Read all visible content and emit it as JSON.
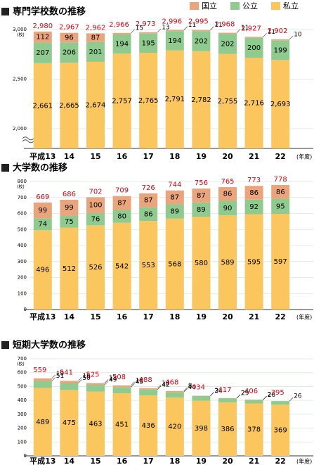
{
  "chart_data": [
    {
      "type": "bar",
      "stacked": true,
      "title": "専門学校数の推移",
      "y_unit": "(校)",
      "x_unit": "(年度)",
      "legend": "top-right",
      "categories": [
        "平成13",
        "14",
        "15",
        "16",
        "17",
        "18",
        "19",
        "20",
        "21",
        "22"
      ],
      "series": [
        {
          "name": "国立",
          "color": "#eaa57d",
          "values": [
            112,
            96,
            87,
            15,
            13,
            11,
            11,
            11,
            11,
            10
          ]
        },
        {
          "name": "公立",
          "color": "#8fcb8f",
          "values": [
            207,
            206,
            201,
            194,
            195,
            194,
            202,
            202,
            200,
            199
          ]
        },
        {
          "name": "私立",
          "color": "#fbc65e",
          "values": [
            2661,
            2665,
            2674,
            2757,
            2765,
            2791,
            2782,
            2755,
            2716,
            2693
          ]
        }
      ],
      "totals": [
        {
          "value": 2980,
          "label": "2,980"
        },
        {
          "value": 2967,
          "label": "2,967"
        },
        {
          "value": 2962,
          "label": "2,962"
        },
        {
          "value": 2966,
          "label": "2,966"
        },
        {
          "value": 2973,
          "label": "2,973"
        },
        {
          "value": 2996,
          "label": "2,996"
        },
        {
          "value": 2995,
          "label": "2,995"
        },
        {
          "value": 2968,
          "label": "2,968"
        },
        {
          "value": 2927,
          "label": "2,927"
        },
        {
          "value": 2902,
          "label": "2,902"
        }
      ],
      "value_labels": [
        [
          112,
          96,
          87,
          15,
          13,
          11,
          11,
          11,
          11,
          10
        ],
        [
          207,
          206,
          201,
          194,
          195,
          194,
          202,
          202,
          200,
          199
        ],
        [
          "2,661",
          "2,665",
          "2,674",
          "2,757",
          "2,765",
          "2,791",
          "2,782",
          "2,755",
          "2,716",
          "2,693"
        ]
      ],
      "totals_color": "#e60012",
      "ylim": [
        1800,
        3050
      ],
      "yticks": [
        {
          "value": 2000,
          "label": "2,000"
        },
        {
          "value": 2500,
          "label": "2,500"
        },
        {
          "value": 3000,
          "label": "3,000"
        }
      ],
      "axis_break": true,
      "grid": true
    },
    {
      "type": "bar",
      "stacked": true,
      "title": "大学数の推移",
      "y_unit": "(校)",
      "x_unit": "(年度)",
      "categories": [
        "平成13",
        "14",
        "15",
        "16",
        "17",
        "18",
        "19",
        "20",
        "21",
        "22"
      ],
      "series": [
        {
          "name": "国立",
          "color": "#eaa57d",
          "values": [
            99,
            99,
            100,
            87,
            87,
            87,
            87,
            86,
            86,
            86
          ]
        },
        {
          "name": "公立",
          "color": "#8fcb8f",
          "values": [
            74,
            75,
            76,
            80,
            86,
            89,
            89,
            90,
            92,
            95
          ]
        },
        {
          "name": "私立",
          "color": "#fbc65e",
          "values": [
            496,
            512,
            526,
            542,
            553,
            568,
            580,
            589,
            595,
            597
          ]
        }
      ],
      "totals": [
        669,
        686,
        702,
        709,
        726,
        744,
        756,
        765,
        773,
        778
      ],
      "totals_color": "#e60012",
      "ylim": [
        0,
        800
      ],
      "yticks": [
        0,
        100,
        200,
        300,
        400,
        500,
        600,
        700,
        800
      ],
      "grid": true
    },
    {
      "type": "bar",
      "stacked": true,
      "title": "短期大学数の推移",
      "y_unit": "(校)",
      "x_unit": "(年度)",
      "categories": [
        "平成13",
        "14",
        "15",
        "16",
        "17",
        "18",
        "19",
        "20",
        "21",
        "22"
      ],
      "series": [
        {
          "name": "国立",
          "color": "#eaa57d",
          "values": [
            19,
            16,
            13,
            12,
            10,
            8,
            2,
            2,
            2,
            0
          ]
        },
        {
          "name": "公立",
          "color": "#8fcb8f",
          "values": [
            51,
            50,
            49,
            45,
            42,
            40,
            34,
            29,
            26,
            26
          ]
        },
        {
          "name": "私立",
          "color": "#fbc65e",
          "values": [
            489,
            475,
            463,
            451,
            436,
            420,
            398,
            386,
            378,
            369
          ]
        }
      ],
      "totals": [
        559,
        541,
        525,
        508,
        488,
        468,
        434,
        417,
        406,
        395
      ],
      "totals_color": "#e60012",
      "ylim": [
        0,
        700
      ],
      "yticks": [
        0,
        100,
        200,
        300,
        400,
        500,
        600,
        700
      ],
      "grid": true
    }
  ]
}
